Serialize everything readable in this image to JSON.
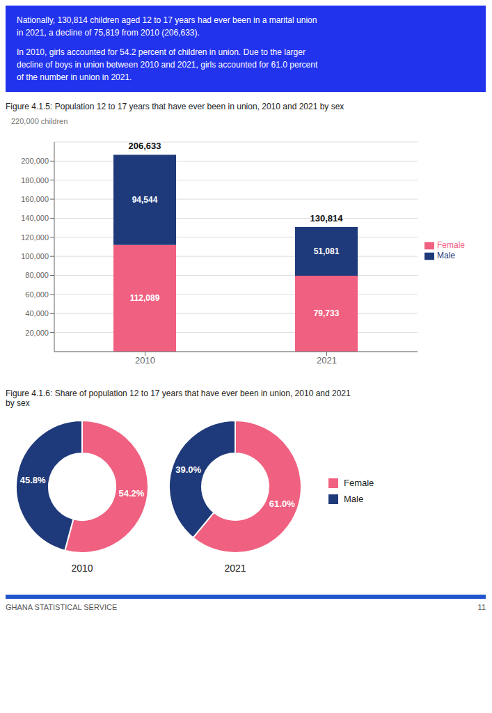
{
  "chart_data": [
    {
      "type": "bar",
      "title": "Figure 4.1.5: Population 12 to 17 years that have ever been in union, 2010 and 2021 by sex",
      "ylabel": "220,000 children",
      "categories": [
        "2010",
        "2021"
      ],
      "stacked": true,
      "data_labels": true,
      "grid": true,
      "legend": "right",
      "series": [
        {
          "name": "Female",
          "color": "#F06080",
          "values": [
            112089,
            79733
          ],
          "value_labels": [
            "112,089",
            "79,733"
          ]
        },
        {
          "name": "Male",
          "color": "#1F3A7A",
          "values": [
            94544,
            51081
          ],
          "value_labels": [
            "94,544",
            "51,081"
          ]
        }
      ],
      "ylim": [
        0,
        220000
      ],
      "yticks": [
        {
          "value": 20000,
          "label": "20,000"
        },
        {
          "value": 40000,
          "label": "40,000"
        },
        {
          "value": 60000,
          "label": "60,000"
        },
        {
          "value": 80000,
          "label": "80,000"
        },
        {
          "value": 100000,
          "label": "100,000"
        },
        {
          "value": 120000,
          "label": "120,000"
        },
        {
          "value": 140000,
          "label": "140,000"
        },
        {
          "value": 160000,
          "label": "160,000"
        },
        {
          "value": 180000,
          "label": "180,000"
        },
        {
          "value": 200000,
          "label": "200,000"
        }
      ],
      "annotations": [
        {
          "text": "Nationally, 130,814 children aged 12 to 17 years had ever been in a marital union\nin 2021, a decline of 75,819 from 2010 (206,633)."
        },
        {
          "text": "In 2010, girls accounted for 54.2 percent of children in union. Due to the larger\ndecline of boys in union between 2010 and 2021, girls accounted for 61.0 percent\nof the number in union in 2021."
        },
        {
          "text": "206,633",
          "x": "2010"
        },
        {
          "text": "130,814",
          "x": "2021"
        }
      ]
    },
    {
      "type": "pie",
      "title": "Figure 4.1.6: Share of population 12 to 17 years that have ever been in union, 2010 and 2021\nby sex",
      "categories": [
        "Female",
        "Male"
      ],
      "colors": [
        "#F06080",
        "#1F3A7A"
      ],
      "data_labels": true,
      "legend": "right",
      "series": [
        {
          "name": "2010",
          "values": [
            54.2,
            45.8
          ],
          "value_labels": [
            "54.2%",
            "45.8%"
          ]
        },
        {
          "name": "2021",
          "values": [
            61.0,
            39.0
          ],
          "value_labels": [
            "61.0%",
            "39.0%"
          ]
        }
      ],
      "annotations": [
        {
          "text": "GHANA STATISTICAL SERVICE"
        },
        {
          "text": "11"
        }
      ]
    }
  ]
}
